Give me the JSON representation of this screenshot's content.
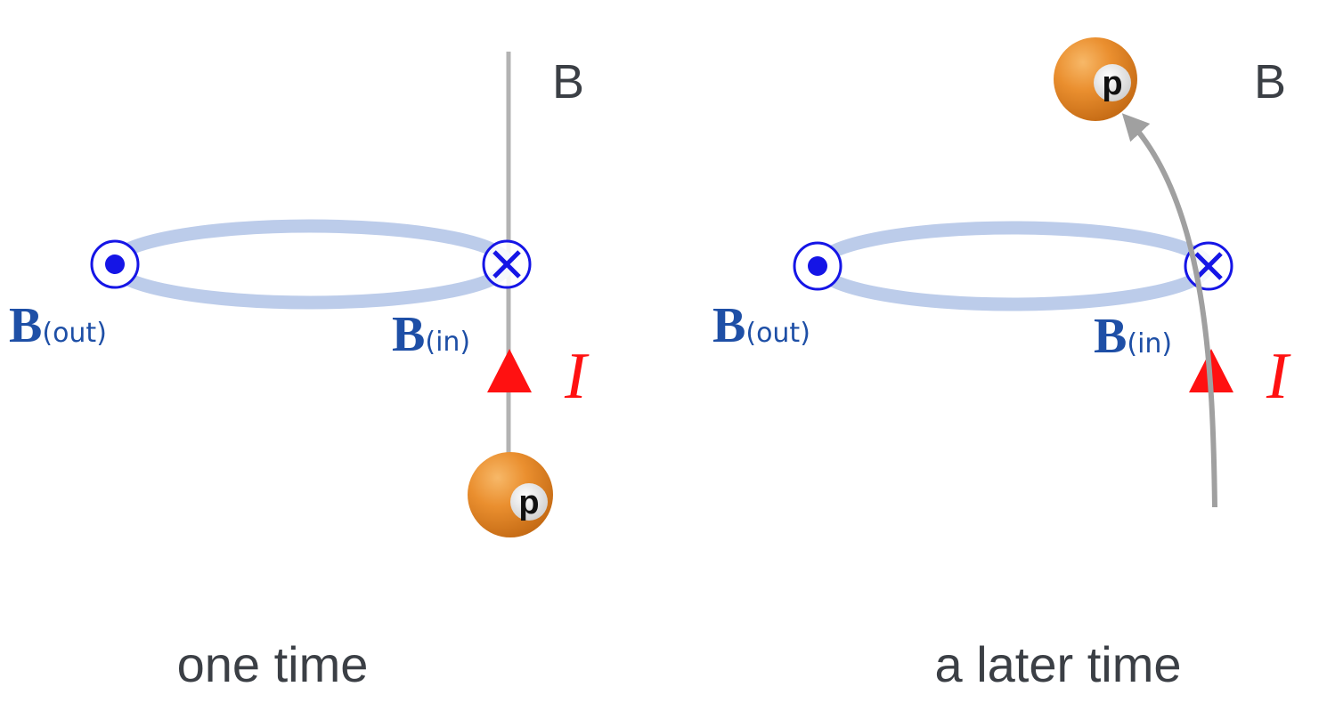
{
  "panels": [
    {
      "caption": "one time",
      "field_label": "B",
      "b_out_main": "B",
      "b_out_sub": "(out)",
      "b_in_main": "B",
      "b_in_sub": "(in)",
      "current_label": "I",
      "proton_label": "p"
    },
    {
      "caption": "a later time",
      "field_label": "B",
      "b_out_main": "B",
      "b_out_sub": "(out)",
      "b_in_main": "B",
      "b_in_sub": "(in)",
      "current_label": "I",
      "proton_label": "p"
    }
  ],
  "colors": {
    "loop": "#bcccea",
    "field_symbol": "#1515e6",
    "b_text": "#1e4fa6",
    "current_arrow": "#ff1111",
    "track": "#a0a0a0",
    "proton": "#e8892f",
    "caption_text": "#3b3f45"
  }
}
